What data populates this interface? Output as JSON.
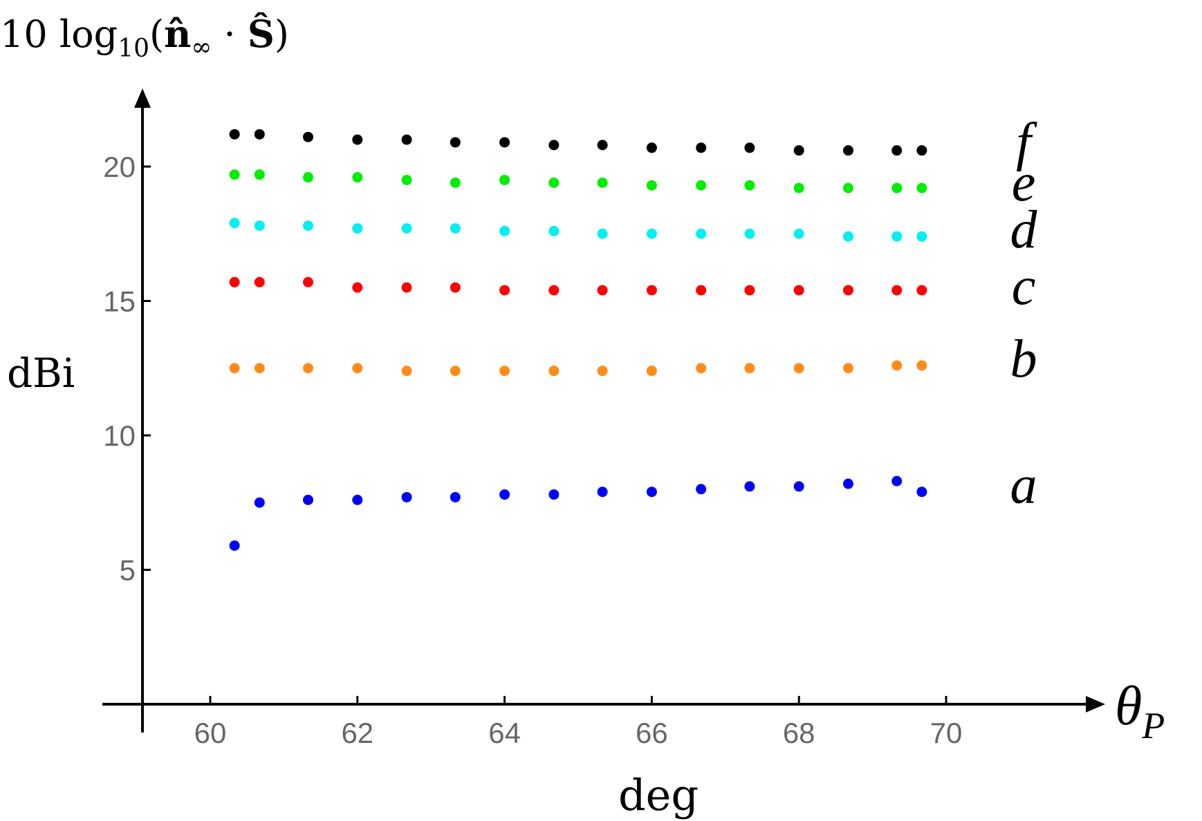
{
  "chart_data": {
    "type": "scatter",
    "title": "10 log₁₀(n̂∞ · Ŝ)",
    "title_parts": {
      "prefix": "10 log",
      "subscript": "10",
      "open": "(",
      "n": "n̂",
      "n_sub": "∞",
      "dot": " · ",
      "s": "Ŝ",
      "close": ")"
    },
    "ylabel": "dBi",
    "xlabel": "deg",
    "x_axis_symbol": {
      "base": "θ",
      "sub": "P"
    },
    "xlim": [
      59.0,
      71.9
    ],
    "ylim": [
      0,
      22.8
    ],
    "x_ticks": [
      60,
      62,
      64,
      66,
      68,
      70
    ],
    "y_ticks": [
      5,
      10,
      15,
      20
    ],
    "grid": false,
    "legend": "inline letters at right end of each series",
    "x": [
      60.33,
      60.67,
      61.33,
      62.0,
      62.67,
      63.33,
      64.0,
      64.67,
      65.33,
      66.0,
      66.67,
      67.33,
      68.0,
      68.67,
      69.33,
      69.67
    ],
    "series": [
      {
        "label": "a",
        "color": "#0000ff",
        "values": [
          5.9,
          7.5,
          7.6,
          7.6,
          7.7,
          7.7,
          7.8,
          7.8,
          7.9,
          7.9,
          8.0,
          8.1,
          8.1,
          8.2,
          8.3,
          7.9
        ]
      },
      {
        "label": "b",
        "color": "#ff8c1a",
        "values": [
          12.5,
          12.5,
          12.5,
          12.5,
          12.4,
          12.4,
          12.4,
          12.4,
          12.4,
          12.4,
          12.5,
          12.5,
          12.5,
          12.5,
          12.6,
          12.6
        ]
      },
      {
        "label": "c",
        "color": "#ff0000",
        "values": [
          15.7,
          15.7,
          15.7,
          15.5,
          15.5,
          15.5,
          15.4,
          15.4,
          15.4,
          15.4,
          15.4,
          15.4,
          15.4,
          15.4,
          15.4,
          15.4
        ]
      },
      {
        "label": "d",
        "color": "#00f0f0",
        "values": [
          17.9,
          17.8,
          17.8,
          17.7,
          17.7,
          17.7,
          17.6,
          17.6,
          17.5,
          17.5,
          17.5,
          17.5,
          17.5,
          17.4,
          17.4,
          17.4
        ]
      },
      {
        "label": "e",
        "color": "#00ee00",
        "values": [
          19.7,
          19.7,
          19.6,
          19.6,
          19.5,
          19.4,
          19.5,
          19.4,
          19.4,
          19.3,
          19.3,
          19.3,
          19.2,
          19.2,
          19.2,
          19.2
        ]
      },
      {
        "label": "f",
        "color": "#000000",
        "values": [
          21.2,
          21.2,
          21.1,
          21.0,
          21.0,
          20.9,
          20.9,
          20.8,
          20.8,
          20.7,
          20.7,
          20.7,
          20.6,
          20.6,
          20.6,
          20.6
        ]
      }
    ]
  }
}
